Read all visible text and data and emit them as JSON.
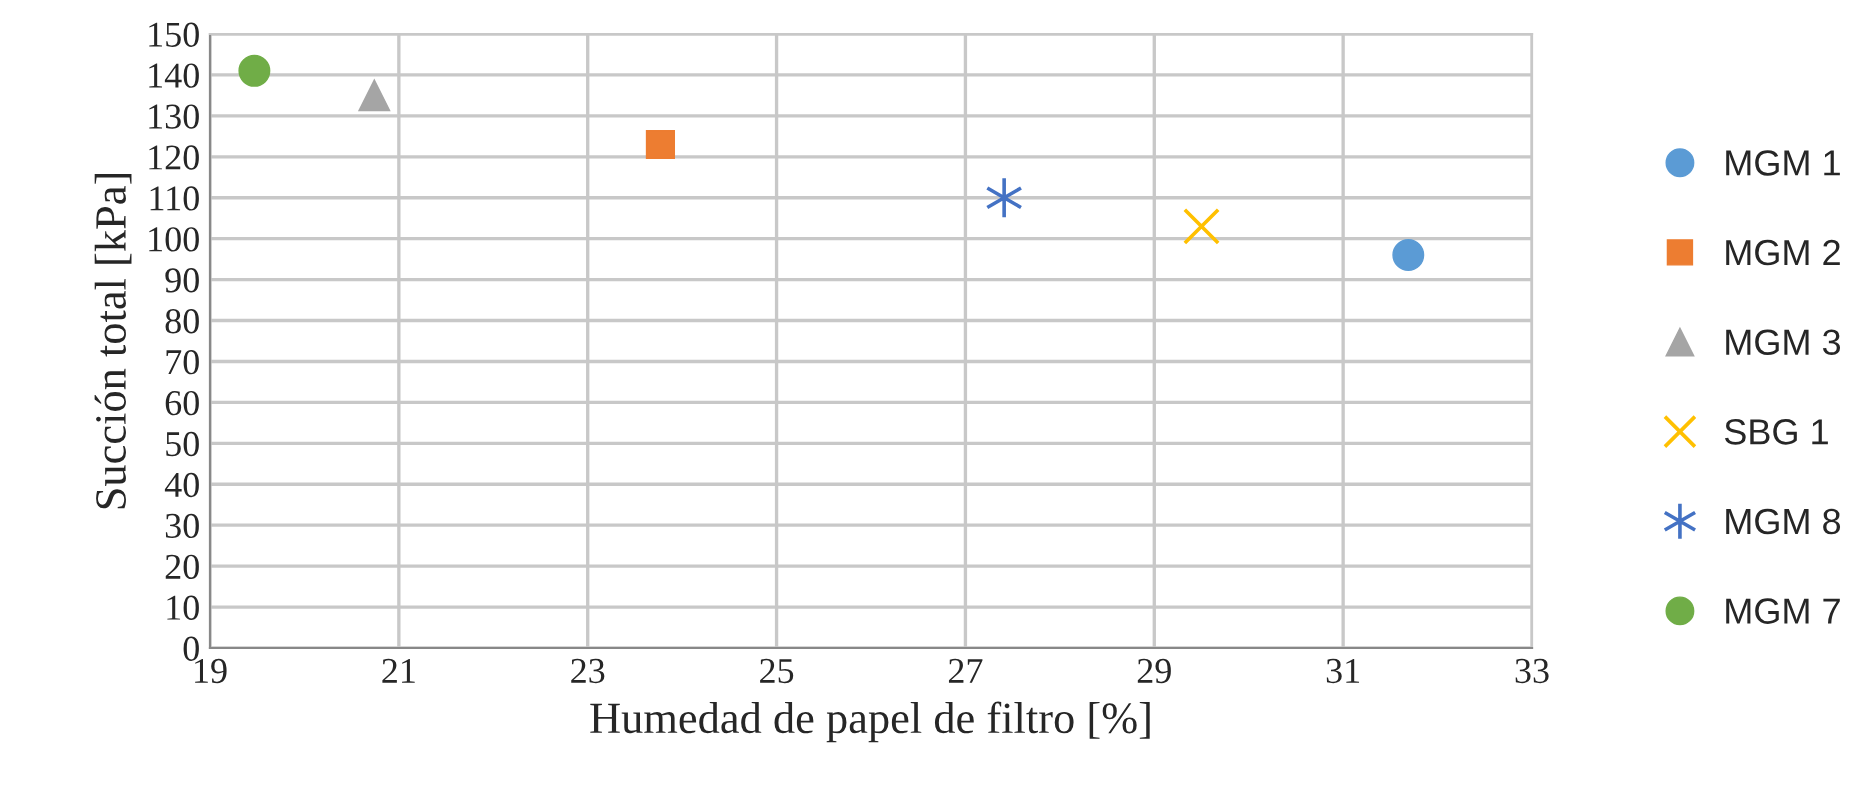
{
  "chart_data": {
    "type": "scatter",
    "xlabel": "Humedad de papel de filtro [%]",
    "ylabel": "Succión total [kPa]",
    "xlim": [
      19,
      33
    ],
    "xticks": [
      19,
      21,
      23,
      25,
      27,
      29,
      31,
      33
    ],
    "ylim": [
      0,
      150
    ],
    "yticks": [
      0,
      10,
      20,
      30,
      40,
      50,
      60,
      70,
      80,
      90,
      100,
      110,
      120,
      130,
      140,
      150
    ],
    "grid": true,
    "legend": "right",
    "series": [
      {
        "name": "MGM 1",
        "color": "#5b9bd5",
        "marker": "circle",
        "x": [
          31.69
        ],
        "values": [
          96
        ]
      },
      {
        "name": "MGM 2",
        "color": "#ed7d31",
        "marker": "square",
        "x": [
          23.77
        ],
        "values": [
          123
        ]
      },
      {
        "name": "MGM 3",
        "color": "#a5a5a5",
        "marker": "triangle",
        "x": [
          20.74
        ],
        "values": [
          135
        ]
      },
      {
        "name": "SBG 1",
        "color": "#ffc000",
        "marker": "cross",
        "x": [
          29.5
        ],
        "values": [
          103
        ]
      },
      {
        "name": "MGM 8",
        "color": "#4472c4",
        "marker": "cross",
        "x": [
          27.41
        ],
        "values": [
          110
        ]
      },
      {
        "name": "MGM 7",
        "color": "#70ad47",
        "marker": "circle",
        "x": [
          19.47
        ],
        "values": [
          141
        ]
      }
    ]
  }
}
